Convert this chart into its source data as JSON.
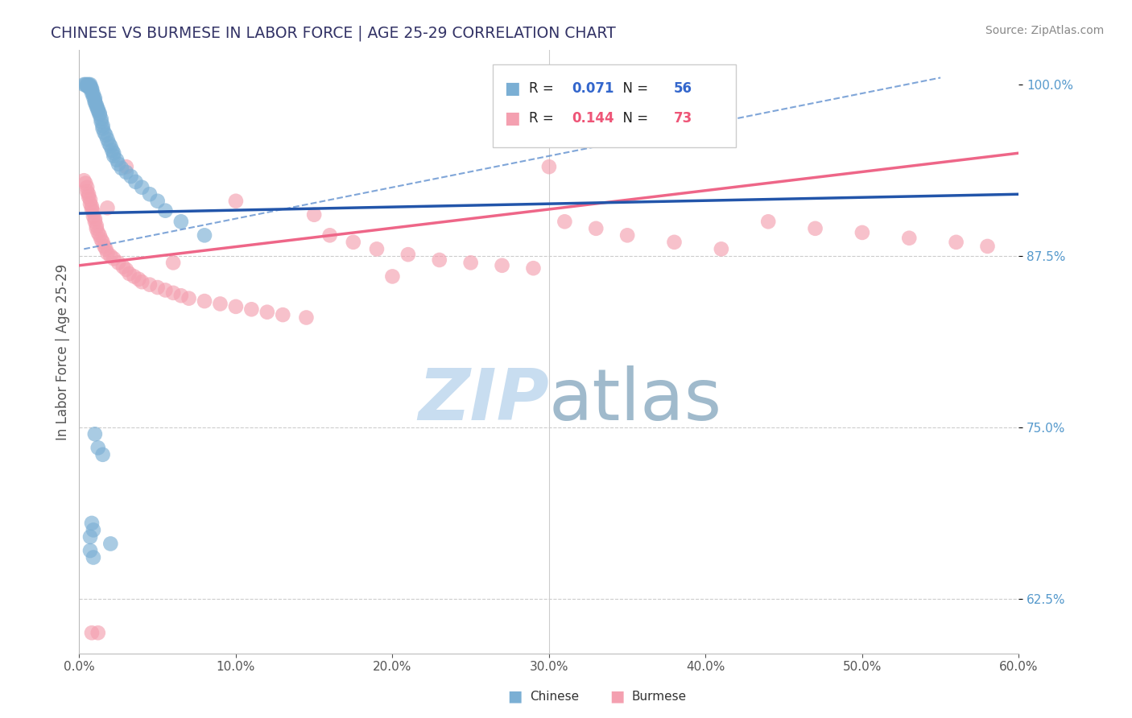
{
  "title": "CHINESE VS BURMESE IN LABOR FORCE | AGE 25-29 CORRELATION CHART",
  "source": "Source: ZipAtlas.com",
  "ylabel": "In Labor Force | Age 25-29",
  "xlim": [
    0.0,
    0.6
  ],
  "ylim": [
    0.585,
    1.025
  ],
  "chinese_R": 0.071,
  "chinese_N": 56,
  "burmese_R": 0.144,
  "burmese_N": 73,
  "chinese_color": "#7BAFD4",
  "burmese_color": "#F4A0B0",
  "chinese_line_color": "#2255AA",
  "burmese_line_color": "#EE6688",
  "dashed_line_color": "#5588CC",
  "watermark_color": "#C8DDF0",
  "background_color": "#FFFFFF",
  "grid_color": "#CCCCCC",
  "title_color": "#333366",
  "source_color": "#888888",
  "ytick_color": "#5599CC",
  "xtick_color": "#555555",
  "ylabel_color": "#555555",
  "chinese_x": [
    0.003,
    0.004,
    0.005,
    0.005,
    0.006,
    0.006,
    0.007,
    0.007,
    0.007,
    0.008,
    0.008,
    0.008,
    0.009,
    0.009,
    0.01,
    0.01,
    0.01,
    0.011,
    0.011,
    0.012,
    0.012,
    0.013,
    0.013,
    0.014,
    0.014,
    0.015,
    0.015,
    0.016,
    0.017,
    0.018,
    0.019,
    0.02,
    0.021,
    0.022,
    0.022,
    0.024,
    0.025,
    0.027,
    0.03,
    0.033,
    0.036,
    0.04,
    0.045,
    0.05,
    0.055,
    0.065,
    0.08,
    0.01,
    0.012,
    0.015,
    0.008,
    0.009,
    0.007,
    0.02,
    0.007,
    0.009
  ],
  "chinese_y": [
    1.0,
    1.0,
    1.0,
    0.999,
    1.0,
    0.998,
    1.0,
    0.999,
    0.998,
    0.997,
    0.996,
    0.994,
    0.993,
    0.991,
    0.99,
    0.988,
    0.987,
    0.985,
    0.984,
    0.982,
    0.981,
    0.979,
    0.978,
    0.975,
    0.973,
    0.97,
    0.968,
    0.965,
    0.963,
    0.96,
    0.957,
    0.955,
    0.952,
    0.95,
    0.948,
    0.945,
    0.942,
    0.939,
    0.936,
    0.933,
    0.929,
    0.925,
    0.92,
    0.915,
    0.908,
    0.9,
    0.89,
    0.745,
    0.735,
    0.73,
    0.68,
    0.675,
    0.67,
    0.665,
    0.66,
    0.655
  ],
  "burmese_x": [
    0.003,
    0.004,
    0.005,
    0.005,
    0.006,
    0.006,
    0.007,
    0.007,
    0.008,
    0.008,
    0.009,
    0.009,
    0.01,
    0.01,
    0.011,
    0.011,
    0.012,
    0.013,
    0.014,
    0.015,
    0.016,
    0.017,
    0.018,
    0.02,
    0.022,
    0.025,
    0.028,
    0.03,
    0.032,
    0.035,
    0.038,
    0.04,
    0.045,
    0.05,
    0.055,
    0.06,
    0.065,
    0.07,
    0.08,
    0.09,
    0.1,
    0.11,
    0.12,
    0.13,
    0.145,
    0.16,
    0.175,
    0.19,
    0.21,
    0.23,
    0.25,
    0.27,
    0.29,
    0.31,
    0.33,
    0.35,
    0.38,
    0.41,
    0.44,
    0.47,
    0.5,
    0.53,
    0.56,
    0.58,
    0.3,
    0.2,
    0.15,
    0.1,
    0.06,
    0.03,
    0.008,
    0.012,
    0.018
  ],
  "burmese_y": [
    0.93,
    0.928,
    0.925,
    0.922,
    0.92,
    0.918,
    0.916,
    0.913,
    0.911,
    0.909,
    0.907,
    0.904,
    0.902,
    0.9,
    0.897,
    0.895,
    0.892,
    0.89,
    0.887,
    0.885,
    0.882,
    0.88,
    0.877,
    0.875,
    0.873,
    0.87,
    0.867,
    0.865,
    0.862,
    0.86,
    0.858,
    0.856,
    0.854,
    0.852,
    0.85,
    0.848,
    0.846,
    0.844,
    0.842,
    0.84,
    0.838,
    0.836,
    0.834,
    0.832,
    0.83,
    0.89,
    0.885,
    0.88,
    0.876,
    0.872,
    0.87,
    0.868,
    0.866,
    0.9,
    0.895,
    0.89,
    0.885,
    0.88,
    0.9,
    0.895,
    0.892,
    0.888,
    0.885,
    0.882,
    0.94,
    0.86,
    0.905,
    0.915,
    0.87,
    0.94,
    0.6,
    0.6,
    0.91
  ]
}
